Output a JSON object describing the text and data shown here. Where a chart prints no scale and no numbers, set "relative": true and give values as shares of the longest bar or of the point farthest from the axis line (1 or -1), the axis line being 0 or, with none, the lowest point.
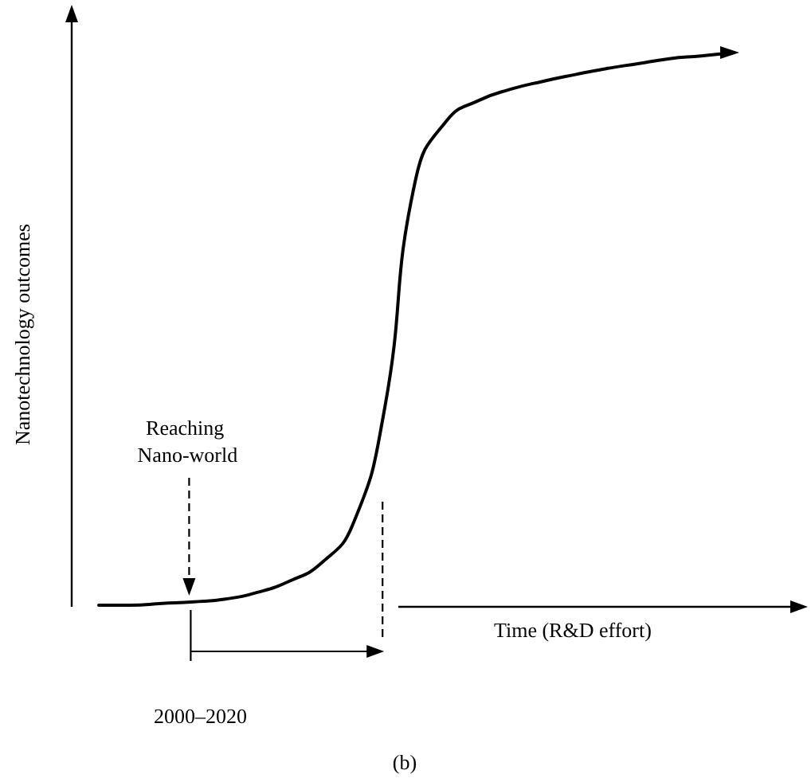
{
  "chart_data": {
    "type": "line",
    "relative": true,
    "xlabel": "Time (R&D effort)",
    "ylabel": "Nanotechnology outcomes",
    "categories": [
      null,
      null,
      null,
      null,
      null,
      null,
      null,
      null,
      null,
      null,
      null,
      null,
      null,
      null,
      null,
      null,
      null,
      null,
      null,
      null,
      null
    ],
    "series": [
      {
        "color": "#000000",
        "values": [
          0.003,
          0.003,
          0.006,
          0.009,
          0.014,
          0.026,
          0.046,
          0.078,
          0.147,
          0.353,
          0.773,
          0.879,
          0.914,
          0.934,
          0.948,
          0.96,
          0.971,
          0.98,
          0.989,
          0.994,
          1
        ]
      }
    ],
    "annotations": [
      "Reaching Nano-world",
      "2000–2020",
      "(b)"
    ],
    "marker": "none",
    "line_style": "solid"
  }
}
